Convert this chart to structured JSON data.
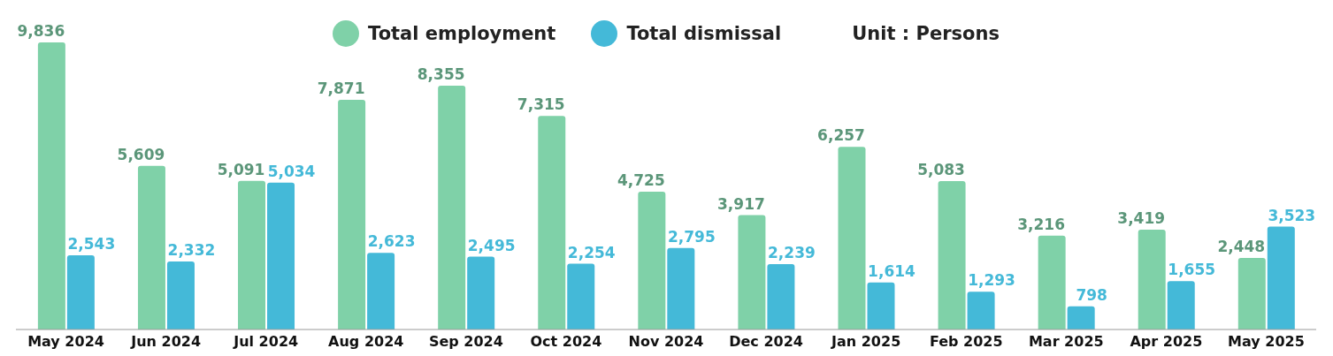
{
  "chart_data": {
    "type": "bar",
    "categories": [
      "May 2024",
      "Jun 2024",
      "Jul 2024",
      "Aug 2024",
      "Sep 2024",
      "Oct 2024",
      "Nov 2024",
      "Dec 2024",
      "Jan 2025",
      "Feb 2025",
      "Mar 2025",
      "Apr 2025",
      "May 2025"
    ],
    "series": [
      {
        "name": "Total employment",
        "color": "#7fd1a8",
        "values": [
          9836,
          5609,
          5091,
          7871,
          8355,
          7315,
          4725,
          3917,
          6257,
          5083,
          3216,
          3419,
          2448
        ],
        "value_labels": [
          "9,836",
          "5,609",
          "5,091",
          "7,871",
          "8,355",
          "7,315",
          "4,725",
          "3,917",
          "6,257",
          "5,083",
          "3,216",
          "3,419",
          "2,448"
        ]
      },
      {
        "name": "Total dismissal",
        "color": "#44b9d8",
        "values": [
          2543,
          2332,
          5034,
          2623,
          2495,
          2254,
          2795,
          2239,
          1614,
          1293,
          798,
          1655,
          3523
        ],
        "value_labels": [
          "2,543",
          "2,332",
          "5,034",
          "2,623",
          "2,495",
          "2,254",
          "2,795",
          "2,239",
          "1,614",
          "1,293",
          "798",
          "1,655",
          "3,523"
        ]
      }
    ],
    "legend": "top",
    "grid": false,
    "annotations": [
      "Unit : Persons"
    ]
  }
}
